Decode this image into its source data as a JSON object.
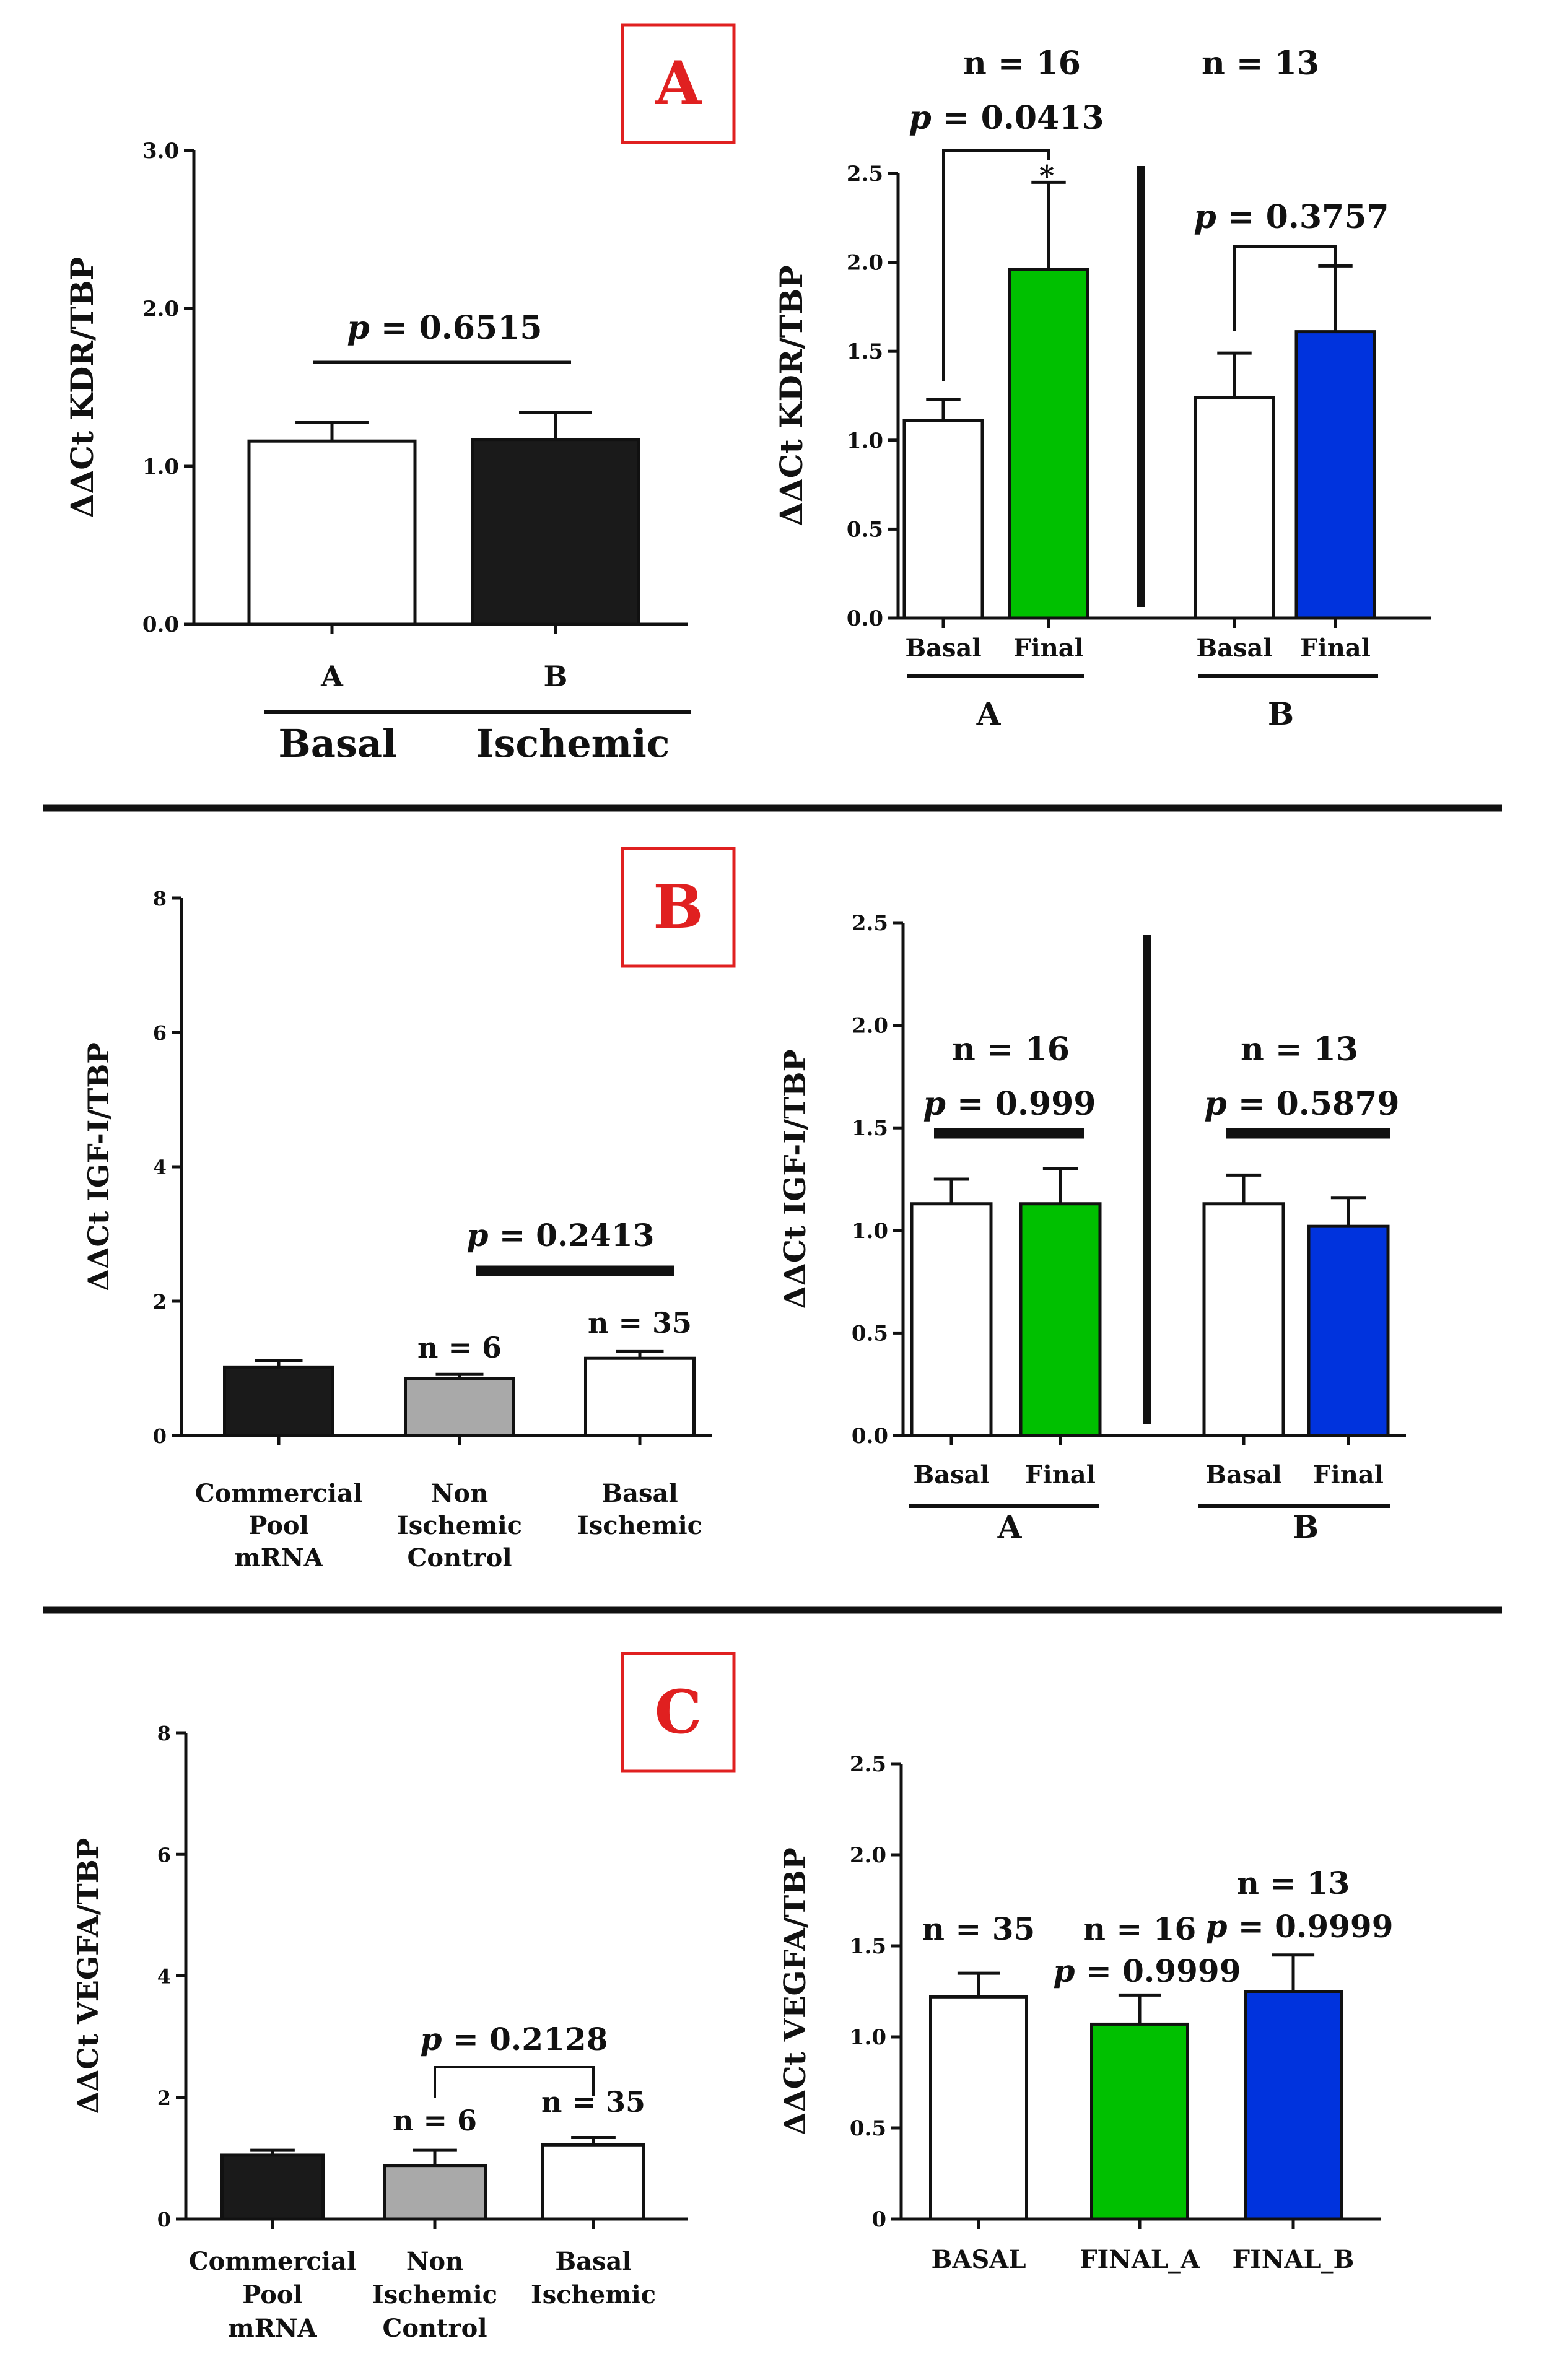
{
  "colors": {
    "white": "#ffffff",
    "black": "#1a1a1a",
    "gray": "#a9a9a9",
    "green": "#00c000",
    "blue": "#0033dd",
    "red": "#e02020"
  },
  "panel_labels": [
    "A",
    "B",
    "C"
  ],
  "chart_data": [
    {
      "id": "a_left",
      "type": "bar",
      "title": "",
      "ylabel": "ΔΔCt KDR/TBP",
      "ylim": [
        0,
        3
      ],
      "yticks": [
        "0.0",
        "1.0",
        "2.0",
        "3.0"
      ],
      "categories": [
        "A",
        "B"
      ],
      "values": [
        1.16,
        1.17
      ],
      "errors": [
        0.12,
        0.17
      ],
      "colors": [
        "white",
        "black"
      ],
      "group_labels": [
        "Basal",
        "Ischemic"
      ],
      "annotations": [
        {
          "p": "= 0.6515"
        }
      ]
    },
    {
      "id": "a_right",
      "type": "bar",
      "title": "",
      "ylabel": "ΔΔCt KDR/TBP",
      "ylim": [
        0,
        2.5
      ],
      "yticks": [
        "0.0",
        "0.5",
        "1.0",
        "1.5",
        "2.0",
        "2.5"
      ],
      "categories": [
        "Basal",
        "Final",
        "Basal",
        "Final"
      ],
      "values": [
        1.11,
        1.96,
        1.24,
        1.61
      ],
      "errors": [
        0.12,
        0.49,
        0.25,
        0.37
      ],
      "colors": [
        "white",
        "green",
        "white",
        "blue"
      ],
      "group_labels": [
        "A",
        "B"
      ],
      "n_labels": [
        "n = 16",
        "n = 13"
      ],
      "annotations": [
        {
          "p": "= 0.0413"
        },
        {
          "p": "= 0.3757"
        }
      ],
      "star": "*"
    },
    {
      "id": "b_left",
      "type": "bar",
      "title": "",
      "ylabel": "ΔΔCt IGF-I/TBP",
      "ylim": [
        0,
        8
      ],
      "yticks": [
        "0",
        "2",
        "4",
        "6",
        "8"
      ],
      "categories": [
        "Commercial Pool mRNA",
        "Non Ischemic Control",
        "Basal Ischemic"
      ],
      "category_lines": [
        [
          "Commercial",
          "Pool",
          "mRNA"
        ],
        [
          "Non",
          "Ischemic",
          "Control"
        ],
        [
          "Basal",
          "Ischemic"
        ]
      ],
      "values": [
        1.02,
        0.85,
        1.15
      ],
      "errors": [
        0.1,
        0.06,
        0.1
      ],
      "colors": [
        "black",
        "gray",
        "white"
      ],
      "n_labels": [
        "n = 6",
        "n = 35"
      ],
      "annotations": [
        {
          "p": "= 0.2413"
        }
      ]
    },
    {
      "id": "b_right",
      "type": "bar",
      "title": "",
      "ylabel": "ΔΔCt IGF-I/TBP",
      "ylim": [
        0,
        2.5
      ],
      "yticks": [
        "0.0",
        "0.5",
        "1.0",
        "1.5",
        "2.0",
        "2.5"
      ],
      "categories": [
        "Basal",
        "Final",
        "Basal",
        "Final"
      ],
      "values": [
        1.13,
        1.13,
        1.13,
        1.02
      ],
      "errors": [
        0.12,
        0.17,
        0.14,
        0.14
      ],
      "colors": [
        "white",
        "green",
        "white",
        "blue"
      ],
      "group_labels": [
        "A",
        "B"
      ],
      "n_labels": [
        "n = 16",
        "n = 13"
      ],
      "annotations": [
        {
          "p": "= 0.999"
        },
        {
          "p": "= 0.5879"
        }
      ]
    },
    {
      "id": "c_left",
      "type": "bar",
      "title": "",
      "ylabel": "ΔΔCt VEGFA/TBP",
      "ylim": [
        0,
        8
      ],
      "yticks": [
        "0",
        "2",
        "4",
        "6",
        "8"
      ],
      "categories": [
        "Commercial Pool mRNA",
        "Non Ischemic Control",
        "Basal Ischemic"
      ],
      "category_lines": [
        [
          "Commercial",
          "Pool",
          "mRNA"
        ],
        [
          "Non",
          "Ischemic",
          "Control"
        ],
        [
          "Basal",
          "Ischemic"
        ]
      ],
      "values": [
        1.05,
        0.88,
        1.22
      ],
      "errors": [
        0.08,
        0.25,
        0.12
      ],
      "colors": [
        "black",
        "gray",
        "white"
      ],
      "n_labels": [
        "n = 6",
        "n = 35"
      ],
      "annotations": [
        {
          "p": "= 0.2128"
        }
      ]
    },
    {
      "id": "c_right",
      "type": "bar",
      "title": "",
      "ylabel": "ΔΔCt VEGFA/TBP",
      "ylim": [
        0,
        2.5
      ],
      "yticks": [
        "0",
        "0.5",
        "1.0",
        "1.5",
        "2.0",
        "2.5"
      ],
      "categories": [
        "BASAL",
        "FINAL_A",
        "FINAL_B"
      ],
      "values": [
        1.22,
        1.07,
        1.25
      ],
      "errors": [
        0.13,
        0.16,
        0.2
      ],
      "colors": [
        "white",
        "green",
        "blue"
      ],
      "n_labels": [
        "n = 35",
        "n = 16",
        "n = 13"
      ],
      "annotations": [
        {
          "p": "= 0.9999"
        },
        {
          "p": "= 0.9999"
        }
      ]
    }
  ]
}
